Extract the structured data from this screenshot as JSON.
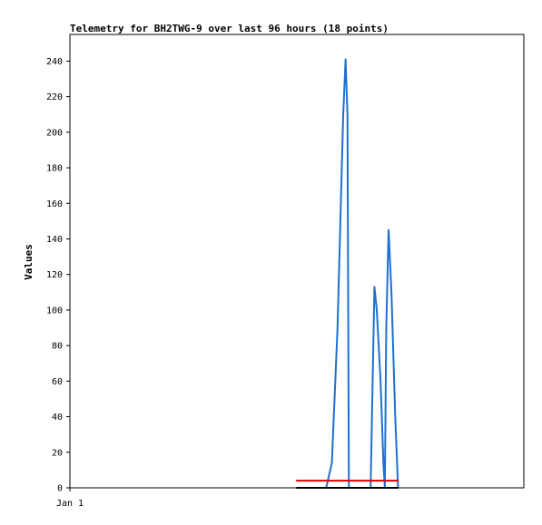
{
  "chart_data": {
    "type": "line",
    "title": "Telemetry for BH2TWG-9 over last 96 hours (18 points)",
    "xlabel": "",
    "ylabel": "Values",
    "x_ticks": [
      "Jan 1"
    ],
    "ylim": [
      0,
      255
    ],
    "y_ticks": [
      0,
      20,
      40,
      60,
      80,
      100,
      120,
      140,
      160,
      180,
      200,
      220,
      240
    ],
    "grid": false,
    "legend": "none",
    "xlim": [
      0,
      96
    ],
    "series": [
      {
        "color": "#1f6fd0",
        "points": [
          [
            54.2,
            0
          ],
          [
            55.4,
            14
          ],
          [
            56.6,
            90
          ],
          [
            57.8,
            210
          ],
          [
            58.3,
            241
          ],
          [
            58.7,
            210
          ],
          [
            59.0,
            0
          ],
          [
            63.6,
            0
          ],
          [
            64.4,
            113
          ],
          [
            64.9,
            100
          ],
          [
            65.7,
            60
          ],
          [
            66.3,
            14
          ],
          [
            66.6,
            0
          ],
          [
            66.9,
            90
          ],
          [
            67.4,
            145
          ],
          [
            68.0,
            110
          ],
          [
            68.8,
            40
          ],
          [
            69.4,
            0
          ]
        ]
      },
      {
        "color": "#e00000",
        "points": [
          [
            47.9,
            4
          ],
          [
            69.4,
            4
          ]
        ]
      },
      {
        "color": "#000000",
        "points": [
          [
            47.9,
            0
          ],
          [
            69.4,
            0
          ]
        ]
      }
    ]
  }
}
